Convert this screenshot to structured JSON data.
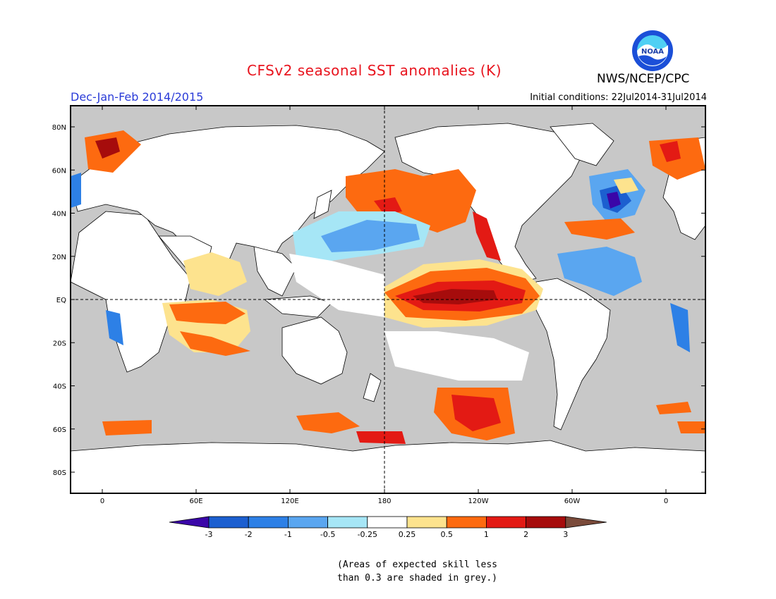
{
  "header": {
    "title": "CFSv2 seasonal SST anomalies (K)",
    "agency": "NWS/NCEP/CPC",
    "logo_text": "NOAA",
    "season": "Dec-Jan-Feb 2014/2015",
    "initial_conditions": "Initial conditions: 22Jul2014-31Jul2014"
  },
  "map": {
    "lat_labels": [
      "80N",
      "60N",
      "40N",
      "20N",
      "EQ",
      "20S",
      "40S",
      "60S",
      "80S"
    ],
    "lon_labels": [
      "0",
      "60E",
      "120E",
      "180",
      "120W",
      "60W",
      "0"
    ],
    "mask_color": "#c8c8c8",
    "land_color": "#ffffff"
  },
  "colorbar": {
    "labels": [
      "-3",
      "-2",
      "-1",
      "-0.5",
      "-0.25",
      "0.25",
      "0.5",
      "1",
      "2",
      "3"
    ],
    "colors": [
      "#3a06a8",
      "#1c5fd0",
      "#2d80e6",
      "#5aa6f0",
      "#a6e6f6",
      "#ffffff",
      "#fde38e",
      "#fd6a10",
      "#e31a14",
      "#a60c0c",
      "#7a4a3a"
    ]
  },
  "note": {
    "line1": "(Areas of expected skill less",
    "line2": "than 0.3 are shaded in grey.)"
  }
}
